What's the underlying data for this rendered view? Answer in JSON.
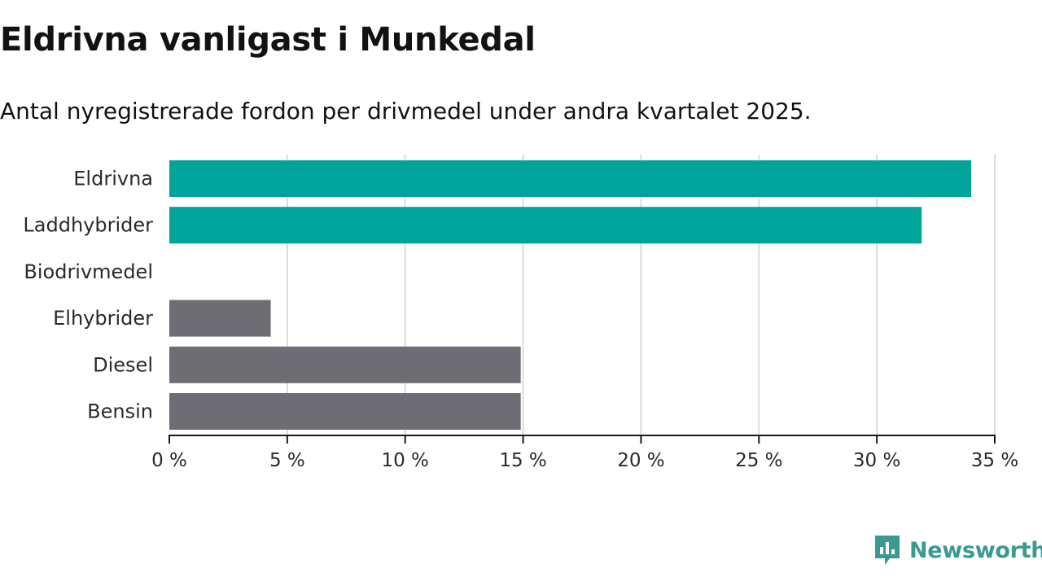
{
  "title": "Eldrivna vanligast i Munkedal",
  "subtitle": "Antal nyregistrerade fordon per drivmedel under andra kvartalet 2025.",
  "brand": "Newsworthy",
  "chart_data": {
    "type": "bar",
    "orientation": "horizontal",
    "categories": [
      "Eldrivna",
      "Laddhybrider",
      "Biodrivmedel",
      "Elhybrider",
      "Diesel",
      "Bensin"
    ],
    "values": [
      34.0,
      31.9,
      0,
      4.3,
      14.9,
      14.9
    ],
    "colors": [
      "#00a49a",
      "#00a49a",
      "#00a49a",
      "#6e6d73",
      "#6e6d73",
      "#6e6d73"
    ],
    "xlim": [
      0,
      35
    ],
    "xticks": [
      0,
      5,
      10,
      15,
      20,
      25,
      30,
      35
    ],
    "tick_suffix": " %",
    "grid": true
  }
}
